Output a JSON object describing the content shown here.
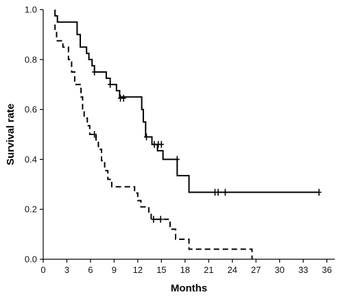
{
  "chart_data": {
    "type": "line",
    "title": "",
    "xlabel": "Months",
    "ylabel": "Survival rate",
    "xlim": [
      0,
      37
    ],
    "ylim": [
      0,
      1.0
    ],
    "x_ticks": [
      0,
      3,
      6,
      9,
      12,
      15,
      18,
      21,
      24,
      27,
      30,
      33,
      36
    ],
    "x_tick_labels": [
      "0",
      "3",
      "6",
      "9",
      "12",
      "15",
      "18",
      "21",
      "24",
      "27",
      "30",
      "33",
      "36"
    ],
    "y_ticks": [
      0.0,
      0.2,
      0.4,
      0.6,
      0.8,
      1.0
    ],
    "y_tick_labels": [
      "0.0",
      "0.2",
      "0.4",
      "0.6",
      "0.8",
      "1.0"
    ],
    "grid": false,
    "legend": "none",
    "series": [
      {
        "style": "solid",
        "color": "#000000",
        "steps": [
          [
            1.5,
            1.0
          ],
          [
            1.5,
            0.975
          ],
          [
            1.8,
            0.95
          ],
          [
            3.7,
            0.95
          ],
          [
            4.3,
            0.9
          ],
          [
            4.7,
            0.85
          ],
          [
            5.5,
            0.825
          ],
          [
            5.8,
            0.8
          ],
          [
            6.2,
            0.775
          ],
          [
            6.5,
            0.75
          ],
          [
            8.0,
            0.725
          ],
          [
            8.5,
            0.7
          ],
          [
            9.3,
            0.675
          ],
          [
            9.7,
            0.65
          ],
          [
            12.5,
            0.6
          ],
          [
            12.7,
            0.55
          ],
          [
            13.0,
            0.49
          ],
          [
            13.8,
            0.46
          ],
          [
            14.5,
            0.435
          ],
          [
            15.2,
            0.4
          ],
          [
            17.0,
            0.335
          ],
          [
            18.5,
            0.268
          ],
          [
            35.0,
            0.268
          ]
        ],
        "censored": [
          [
            6.5,
            0.75
          ],
          [
            8.5,
            0.7
          ],
          [
            9.8,
            0.645
          ],
          [
            10.2,
            0.645
          ],
          [
            13.1,
            0.49
          ],
          [
            14.1,
            0.46
          ],
          [
            14.6,
            0.46
          ],
          [
            15.0,
            0.46
          ],
          [
            17.0,
            0.4
          ],
          [
            21.8,
            0.268
          ],
          [
            22.2,
            0.268
          ],
          [
            23.1,
            0.268
          ],
          [
            35.0,
            0.268
          ]
        ]
      },
      {
        "style": "dashed",
        "color": "#000000",
        "steps": [
          [
            1.5,
            0.94
          ],
          [
            1.5,
            0.915
          ],
          [
            1.7,
            0.875
          ],
          [
            2.5,
            0.85
          ],
          [
            3.2,
            0.8
          ],
          [
            3.6,
            0.75
          ],
          [
            4.0,
            0.7
          ],
          [
            4.8,
            0.65
          ],
          [
            5.0,
            0.6
          ],
          [
            5.2,
            0.565
          ],
          [
            5.6,
            0.535
          ],
          [
            5.9,
            0.5
          ],
          [
            6.7,
            0.475
          ],
          [
            7.0,
            0.44
          ],
          [
            7.4,
            0.395
          ],
          [
            7.8,
            0.355
          ],
          [
            8.2,
            0.32
          ],
          [
            8.7,
            0.29
          ],
          [
            11.6,
            0.265
          ],
          [
            12.0,
            0.235
          ],
          [
            12.4,
            0.21
          ],
          [
            13.4,
            0.185
          ],
          [
            13.7,
            0.16
          ],
          [
            16.1,
            0.12
          ],
          [
            16.8,
            0.08
          ],
          [
            18.5,
            0.04
          ],
          [
            26.5,
            0.04
          ],
          [
            26.5,
            0.0
          ]
        ],
        "censored": [
          [
            6.5,
            0.5
          ],
          [
            14.0,
            0.16
          ],
          [
            14.9,
            0.16
          ]
        ]
      }
    ]
  }
}
